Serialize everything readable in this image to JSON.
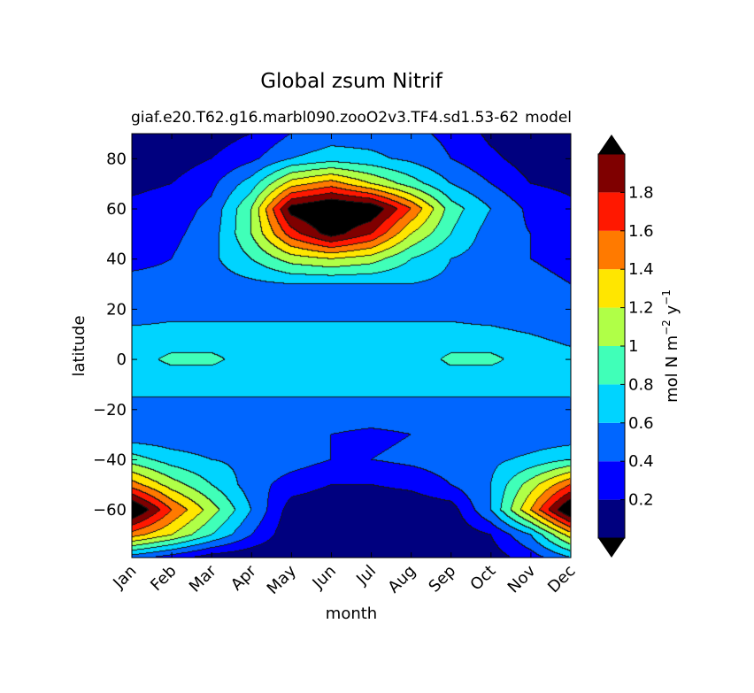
{
  "chart_data": {
    "type": "heatmap",
    "subtype": "filled-contour",
    "title": "Global zsum Nitrif",
    "subtitle": "giaf.e20.T62.g16.marbl090.zooO2v3.TF4.sd1.53-62",
    "subtitle_overlap_text": "model",
    "xlabel": "month",
    "ylabel": "latitude",
    "x_categories": [
      "Jan",
      "Feb",
      "Mar",
      "Apr",
      "May",
      "Jun",
      "Jul",
      "Aug",
      "Sep",
      "Oct",
      "Nov",
      "Dec"
    ],
    "ylim": [
      -79,
      90
    ],
    "y_ticks": [
      "80",
      "60",
      "40",
      "20",
      "0",
      "−20",
      "−40",
      "−60"
    ],
    "y_tick_values": [
      80,
      60,
      40,
      20,
      0,
      -20,
      -40,
      -60
    ],
    "colorbar": {
      "label": "mol N m⁻² y⁻¹",
      "label_parts": [
        "mol N m",
        "−2",
        " y",
        "−1"
      ],
      "levels": [
        0,
        0.2,
        0.4,
        0.6,
        0.8,
        1.0,
        1.2,
        1.4,
        1.6,
        1.8,
        2.0
      ],
      "tick_labels": [
        "0.2",
        "0.4",
        "0.6",
        "0.8",
        "1",
        "1.2",
        "1.4",
        "1.6",
        "1.8"
      ],
      "tick_values": [
        0.2,
        0.4,
        0.6,
        0.8,
        1.0,
        1.2,
        1.4,
        1.6,
        1.8
      ],
      "colors": [
        "#00007f",
        "#0000ff",
        "#0066ff",
        "#00d4ff",
        "#40ffb8",
        "#b0ff47",
        "#ffe600",
        "#ff7a00",
        "#ff1800",
        "#7f0000"
      ],
      "under_color": "#000000",
      "over_color": "#000000",
      "extend": "both"
    },
    "latitudes": [
      -79,
      -70,
      -60,
      -50,
      -40,
      -30,
      -20,
      -10,
      0,
      10,
      20,
      30,
      40,
      50,
      60,
      70,
      80,
      90
    ],
    "values": [
      [
        0.5,
        0.3,
        0.1,
        0.05,
        0.02,
        0.02,
        0.02,
        0.05,
        0.05,
        0.1,
        0.3,
        0.6
      ],
      [
        1.5,
        1.2,
        0.8,
        0.4,
        0.05,
        0.02,
        0.02,
        0.02,
        0.05,
        0.2,
        0.6,
        1.3
      ],
      [
        2.3,
        1.6,
        1.1,
        0.6,
        0.1,
        0.05,
        0.05,
        0.05,
        0.1,
        0.6,
        1.4,
        2.3
      ],
      [
        1.5,
        1.1,
        0.8,
        0.5,
        0.3,
        0.2,
        0.2,
        0.25,
        0.4,
        0.6,
        1.1,
        1.6
      ],
      [
        0.9,
        0.7,
        0.6,
        0.55,
        0.5,
        0.4,
        0.4,
        0.45,
        0.5,
        0.55,
        0.65,
        0.8
      ],
      [
        0.45,
        0.45,
        0.45,
        0.45,
        0.45,
        0.4,
        0.35,
        0.4,
        0.45,
        0.45,
        0.45,
        0.45
      ],
      [
        0.55,
        0.55,
        0.55,
        0.55,
        0.55,
        0.55,
        0.55,
        0.55,
        0.55,
        0.55,
        0.55,
        0.55
      ],
      [
        0.65,
        0.65,
        0.65,
        0.65,
        0.65,
        0.65,
        0.65,
        0.65,
        0.65,
        0.65,
        0.65,
        0.65
      ],
      [
        0.7,
        0.85,
        0.85,
        0.7,
        0.65,
        0.65,
        0.65,
        0.65,
        0.85,
        0.85,
        0.7,
        0.65
      ],
      [
        0.65,
        0.65,
        0.65,
        0.65,
        0.65,
        0.65,
        0.65,
        0.65,
        0.65,
        0.65,
        0.6,
        0.55
      ],
      [
        0.5,
        0.55,
        0.55,
        0.55,
        0.55,
        0.55,
        0.55,
        0.55,
        0.55,
        0.5,
        0.45,
        0.4
      ],
      [
        0.45,
        0.45,
        0.5,
        0.55,
        0.6,
        0.6,
        0.6,
        0.6,
        0.55,
        0.5,
        0.45,
        0.4
      ],
      [
        0.35,
        0.4,
        0.55,
        0.8,
        1.1,
        1.2,
        1.1,
        0.8,
        0.6,
        0.5,
        0.4,
        0.35
      ],
      [
        0.3,
        0.35,
        0.5,
        1.0,
        1.7,
        2.1,
        1.8,
        1.2,
        0.8,
        0.5,
        0.4,
        0.3
      ],
      [
        0.25,
        0.3,
        0.45,
        1.0,
        2.1,
        2.3,
        2.2,
        1.6,
        0.9,
        0.6,
        0.35,
        0.25
      ],
      [
        0.15,
        0.2,
        0.35,
        0.7,
        1.3,
        1.5,
        1.2,
        0.9,
        0.6,
        0.4,
        0.2,
        0.15
      ],
      [
        0.05,
        0.1,
        0.2,
        0.35,
        0.6,
        0.7,
        0.65,
        0.55,
        0.4,
        0.25,
        0.1,
        0.05
      ],
      [
        0.05,
        0.05,
        0.1,
        0.2,
        0.4,
        0.5,
        0.5,
        0.45,
        0.35,
        0.15,
        0.05,
        0.05
      ]
    ],
    "legend": "none",
    "grid": false
  }
}
